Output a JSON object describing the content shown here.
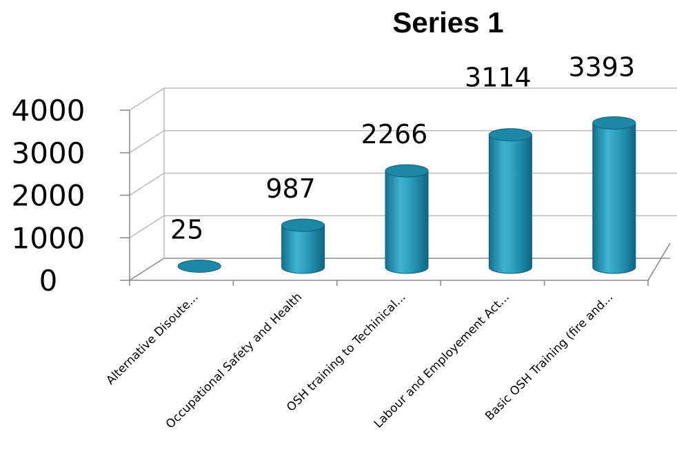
{
  "chart_data": {
    "type": "bar",
    "title": "Series 1",
    "categories": [
      "Alternative Disoute...",
      "Occupational Safety and Health",
      "OSH training to Techinical...",
      "Labour and Employement Act...",
      "Basic OSH Training (fire and..."
    ],
    "series": [
      {
        "name": "Series 1",
        "values": [
          25,
          987,
          2266,
          3114,
          3393
        ]
      }
    ],
    "data_labels": [
      "25",
      "987",
      "2266",
      "3114",
      "3393"
    ],
    "y_ticks": [
      "0",
      "1000",
      "2000",
      "3000",
      "4000"
    ],
    "ylim": [
      0,
      4000
    ],
    "grid": true,
    "legend": "none",
    "bar_style": "3d-cylinder",
    "colors": {
      "bar": "#2a9cbc",
      "bar_dark": "#116f8c",
      "bar_light": "#5cc3dd",
      "grid": "#bcbcbc"
    }
  }
}
